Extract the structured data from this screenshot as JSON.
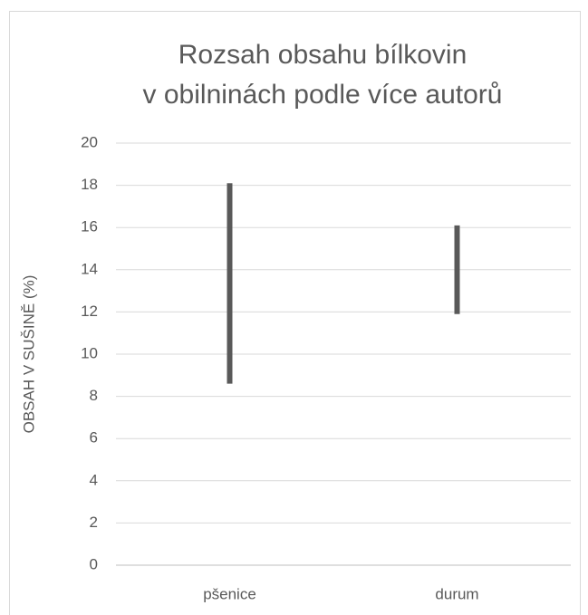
{
  "chart_data": {
    "type": "range",
    "title": [
      "Rozsah obsahu bílkovin",
      "v obilninách podle více autorů"
    ],
    "y_label": "OBSAH V SUŠINĚ (%)",
    "categories": [
      "pšenice",
      "durum"
    ],
    "low": [
      8.6,
      11.9
    ],
    "high": [
      18.1,
      16.1
    ],
    "color": "#595959",
    "ylim": [
      0,
      20
    ],
    "yticks": [
      0,
      2,
      4,
      6,
      8,
      10,
      12,
      14,
      16,
      18,
      20
    ],
    "grid": true
  }
}
